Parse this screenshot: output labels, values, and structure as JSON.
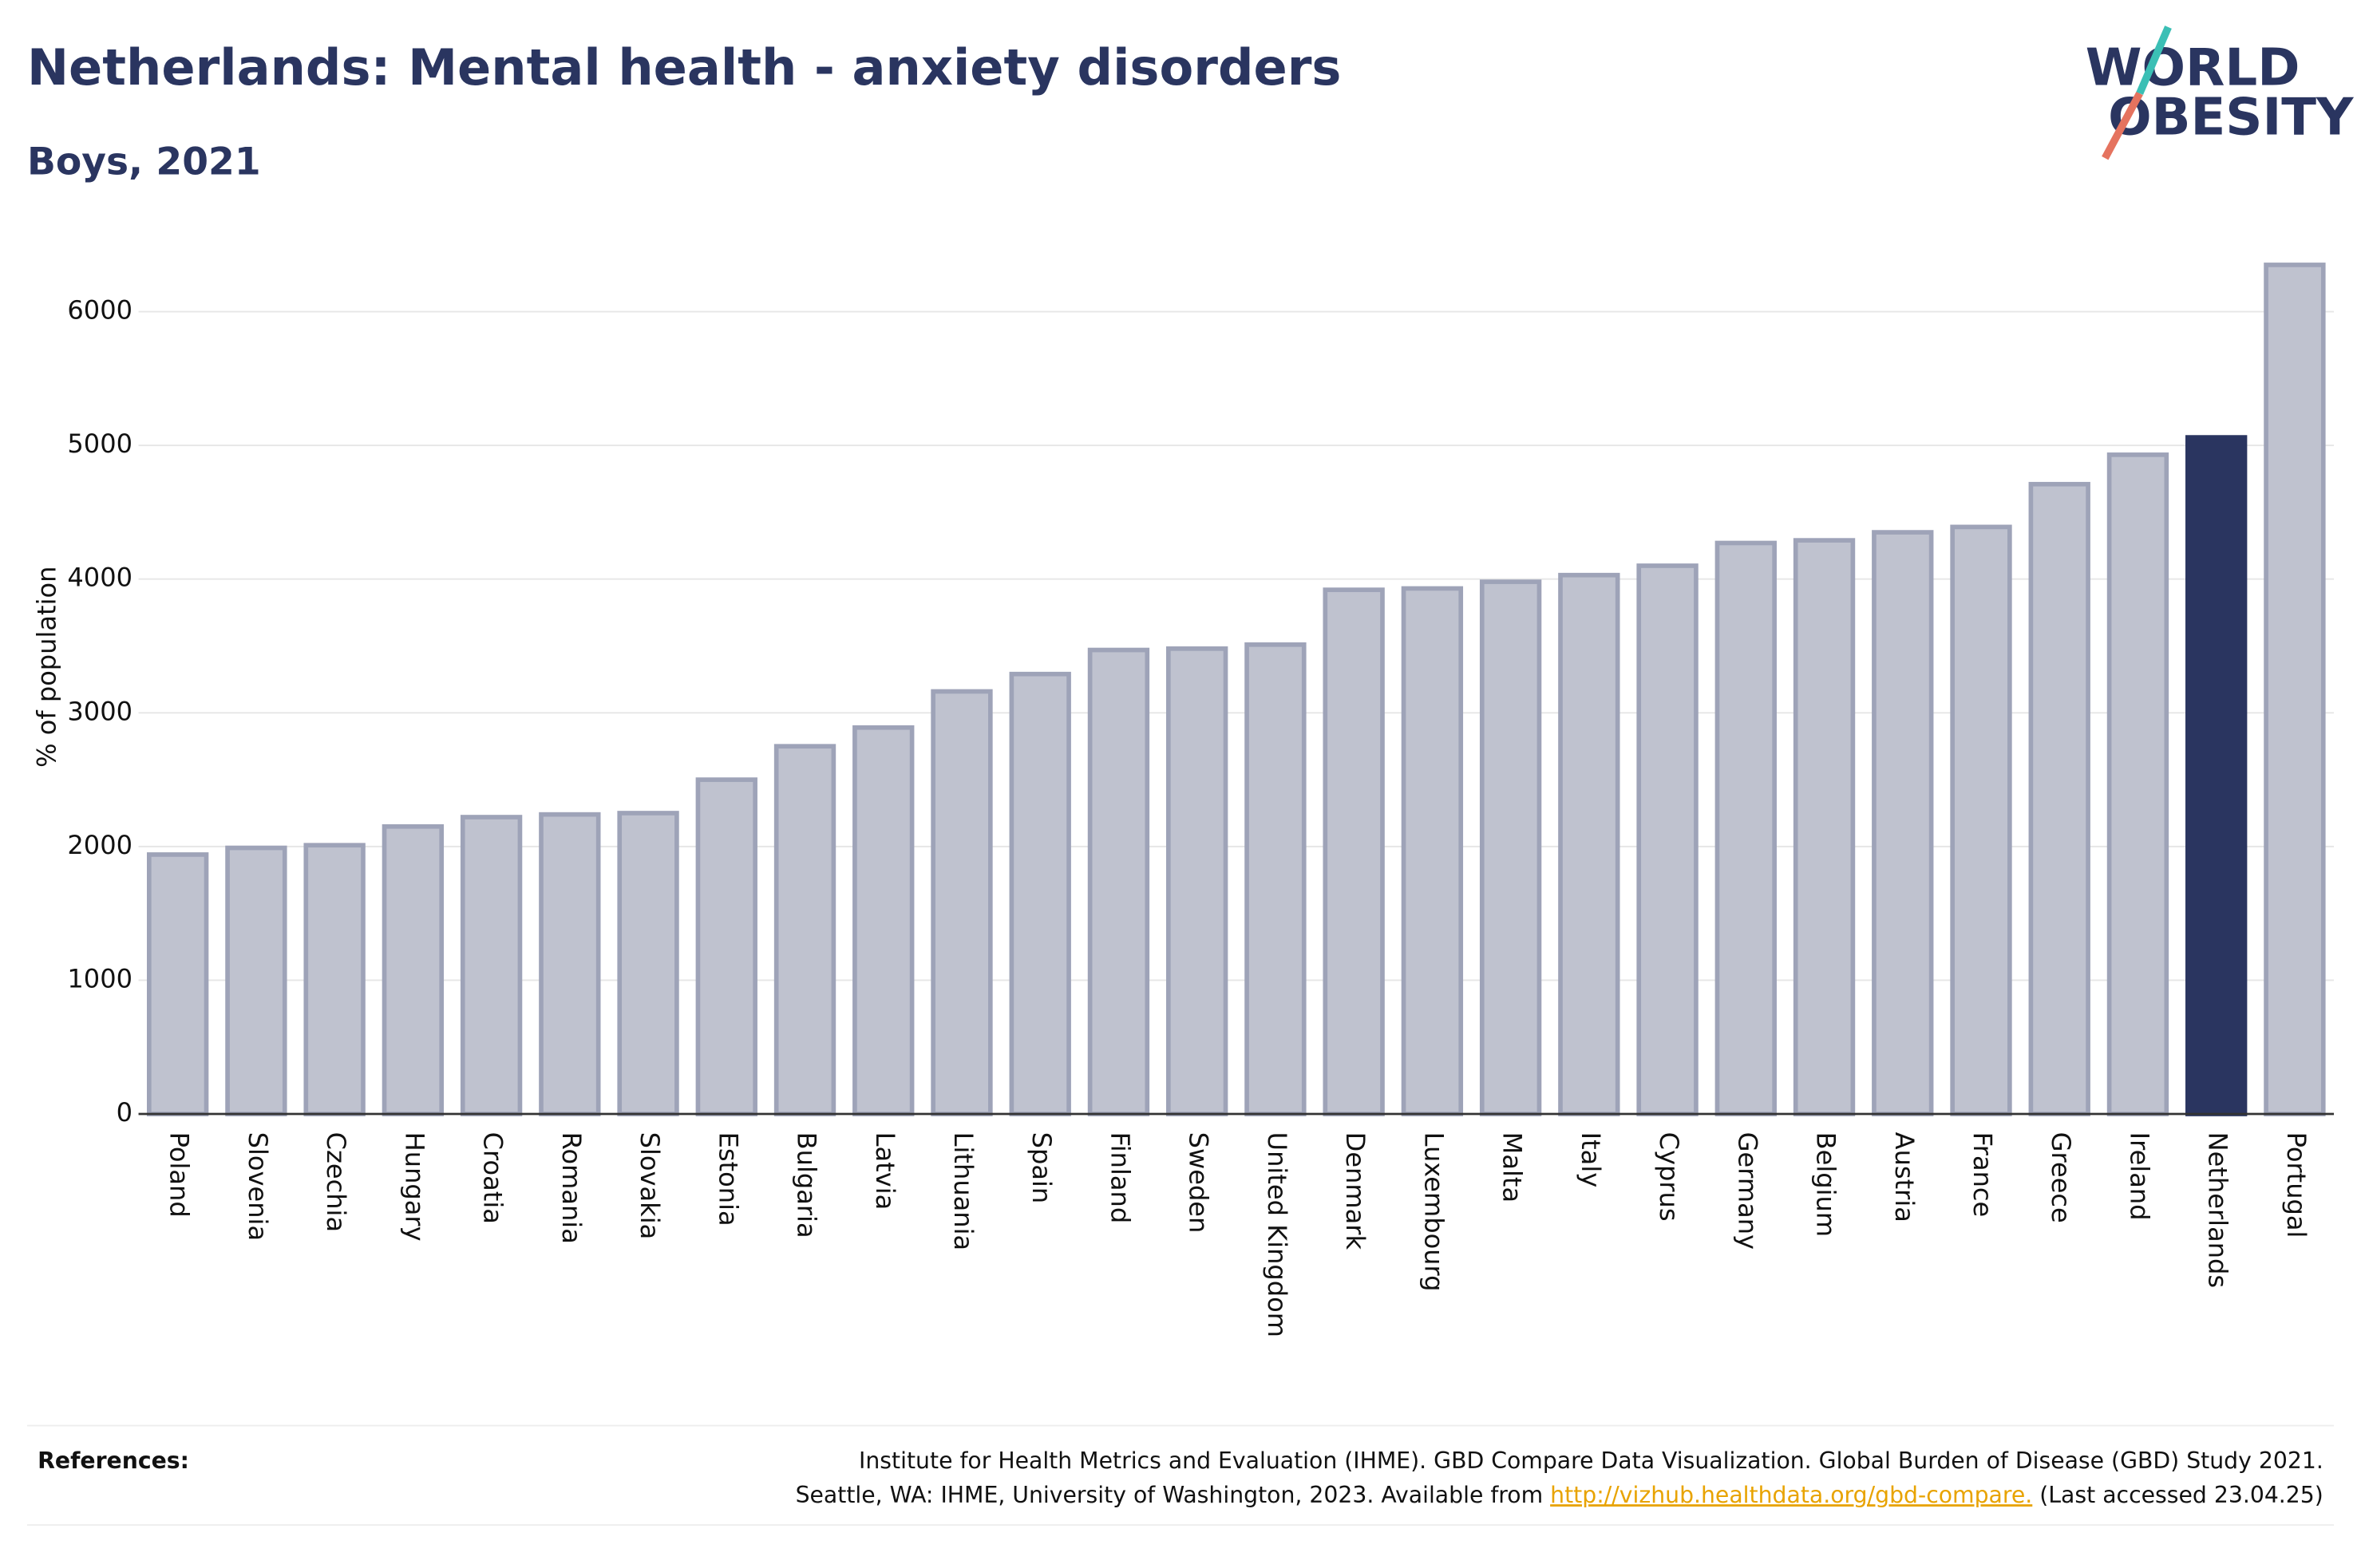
{
  "chart_data": {
    "type": "bar",
    "title": "Netherlands: Mental health - anxiety disorders",
    "subtitle": "Boys, 2021",
    "y_label": "% of population",
    "categories": [
      "Poland",
      "Slovenia",
      "Czechia",
      "Hungary",
      "Croatia",
      "Romania",
      "Slovakia",
      "Estonia",
      "Bulgaria",
      "Latvia",
      "Lithuania",
      "Spain",
      "Finland",
      "Sweden",
      "United Kingdom",
      "Denmark",
      "Luxembourg",
      "Malta",
      "Italy",
      "Cyprus",
      "Germany",
      "Belgium",
      "Austria",
      "France",
      "Greece",
      "Ireland",
      "Netherlands",
      "Portugal"
    ],
    "values": [
      1940,
      1990,
      2010,
      2150,
      2220,
      2240,
      2250,
      2500,
      2750,
      2890,
      3160,
      3290,
      3470,
      3480,
      3510,
      3920,
      3930,
      3980,
      4030,
      4100,
      4270,
      4290,
      4350,
      4390,
      4710,
      4930,
      5060,
      6350
    ],
    "colors": [
      "#bfc2cf",
      "#bfc2cf",
      "#bfc2cf",
      "#bfc2cf",
      "#bfc2cf",
      "#bfc2cf",
      "#bfc2cf",
      "#bfc2cf",
      "#bfc2cf",
      "#bfc2cf",
      "#bfc2cf",
      "#bfc2cf",
      "#bfc2cf",
      "#bfc2cf",
      "#bfc2cf",
      "#bfc2cf",
      "#bfc2cf",
      "#bfc2cf",
      "#bfc2cf",
      "#bfc2cf",
      "#bfc2cf",
      "#bfc2cf",
      "#bfc2cf",
      "#bfc2cf",
      "#bfc2cf",
      "#bfc2cf",
      "#2a3560",
      "#bfc2cf"
    ],
    "ylim": [
      0,
      6400
    ],
    "yticks": [
      0,
      1000,
      2000,
      3000,
      4000,
      5000,
      6000
    ],
    "grid": true
  },
  "logo": {
    "line1": "WORLD",
    "line2": "OBESITY"
  },
  "references": {
    "label": "References:",
    "line1": "Institute for Health Metrics and Evaluation (IHME). GBD Compare Data Visualization. Global Burden of Disease (GBD) Study 2021.",
    "line2_start": "Seattle, WA: IHME, University of Washington, 2023. Available from ",
    "link": "http://vizhub.healthdata.org/gbd-compare.",
    "line2_end": " (Last accessed 23.04.25)"
  }
}
